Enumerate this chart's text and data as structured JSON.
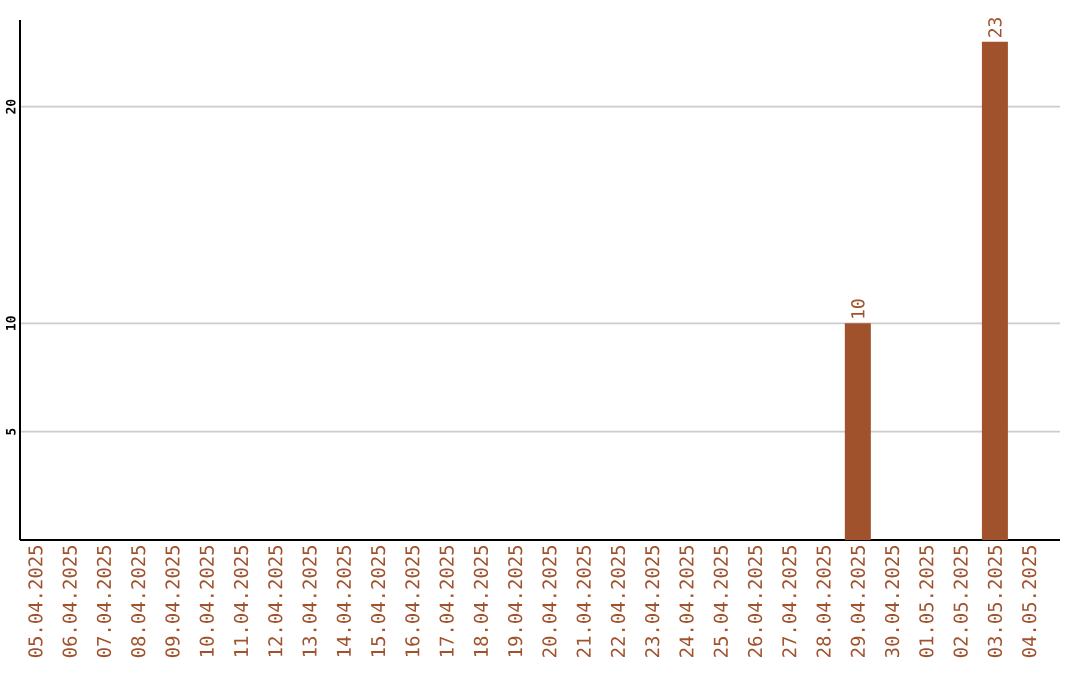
{
  "chart_data": {
    "type": "bar",
    "categories": [
      "05.04.2025",
      "06.04.2025",
      "07.04.2025",
      "08.04.2025",
      "09.04.2025",
      "10.04.2025",
      "11.04.2025",
      "12.04.2025",
      "13.04.2025",
      "14.04.2025",
      "15.04.2025",
      "16.04.2025",
      "17.04.2025",
      "18.04.2025",
      "19.04.2025",
      "20.04.2025",
      "21.04.2025",
      "22.04.2025",
      "23.04.2025",
      "24.04.2025",
      "25.04.2025",
      "26.04.2025",
      "27.04.2025",
      "28.04.2025",
      "29.04.2025",
      "30.04.2025",
      "01.05.2025",
      "02.05.2025",
      "03.05.2025",
      "04.05.2025"
    ],
    "values": [
      0,
      0,
      0,
      0,
      0,
      0,
      0,
      0,
      0,
      0,
      0,
      0,
      0,
      0,
      0,
      0,
      0,
      0,
      0,
      0,
      0,
      0,
      0,
      0,
      10,
      0,
      0,
      0,
      23,
      0
    ],
    "value_labels": [
      null,
      null,
      null,
      null,
      null,
      null,
      null,
      null,
      null,
      null,
      null,
      null,
      null,
      null,
      null,
      null,
      null,
      null,
      null,
      null,
      null,
      null,
      null,
      null,
      "10",
      null,
      null,
      null,
      "23",
      null
    ],
    "color": "#a0522d",
    "ylim": [
      0,
      24
    ],
    "yticks": [
      5,
      10,
      20
    ],
    "grid": "y"
  }
}
